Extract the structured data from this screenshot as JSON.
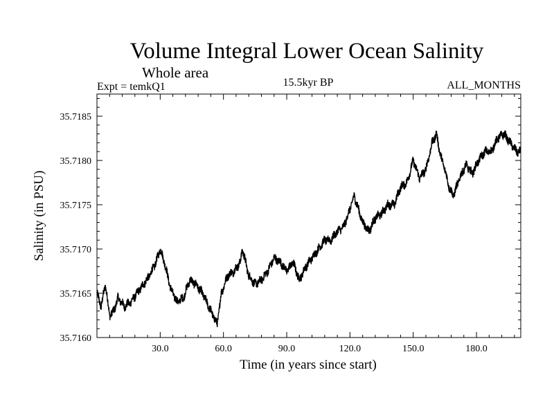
{
  "chart_data": {
    "type": "line",
    "title": "Volume Integral Lower Ocean Salinity",
    "subtitle": "Whole area",
    "header_left": "Expt = temkQ1",
    "header_center": "15.5kyr BP",
    "header_right": "ALL_MONTHS",
    "xlabel": "Time (in years since start)",
    "ylabel": "Salinity (in PSU)",
    "xlim": [
      0,
      201
    ],
    "ylim": [
      35.716,
      35.71875
    ],
    "xticks": [
      {
        "value": 30,
        "label": "30.0"
      },
      {
        "value": 60,
        "label": "60.0"
      },
      {
        "value": 90,
        "label": "90.0"
      },
      {
        "value": 120,
        "label": "120.0"
      },
      {
        "value": 150,
        "label": "150.0"
      },
      {
        "value": 180,
        "label": "180.0"
      }
    ],
    "yticks": [
      {
        "value": 35.716,
        "label": "35.7160"
      },
      {
        "value": 35.7165,
        "label": "35.7165"
      },
      {
        "value": 35.717,
        "label": "35.7170"
      },
      {
        "value": 35.7175,
        "label": "35.7175"
      },
      {
        "value": 35.718,
        "label": "35.7180"
      },
      {
        "value": 35.7185,
        "label": "35.7185"
      }
    ],
    "grid": false,
    "noise_amplitude": 6e-05,
    "series": [
      {
        "name": "salinity",
        "color": "#000000",
        "x": [
          0,
          2,
          4,
          6,
          8,
          10,
          13,
          16,
          19,
          22,
          25,
          28,
          30,
          32,
          35,
          38,
          41,
          44,
          47,
          50,
          53,
          55,
          57,
          59,
          62,
          65,
          68,
          69,
          72,
          75,
          78,
          81,
          84,
          87,
          90,
          93,
          96,
          99,
          102,
          105,
          108,
          111,
          114,
          117,
          120,
          122,
          124,
          126,
          129,
          132,
          135,
          138,
          141,
          144,
          147,
          150,
          153,
          156,
          159,
          161,
          163,
          165,
          167,
          169,
          172,
          175,
          178,
          181,
          184,
          187,
          190,
          193,
          196,
          199,
          201
        ],
        "y": [
          35.7165,
          35.71635,
          35.7166,
          35.71625,
          35.7163,
          35.71645,
          35.71635,
          35.7164,
          35.7165,
          35.7166,
          35.7167,
          35.71685,
          35.717,
          35.71685,
          35.71655,
          35.7164,
          35.71645,
          35.71665,
          35.7166,
          35.7165,
          35.71635,
          35.71625,
          35.71615,
          35.7165,
          35.7167,
          35.71675,
          35.71685,
          35.717,
          35.7167,
          35.7166,
          35.71665,
          35.71675,
          35.7169,
          35.71685,
          35.71675,
          35.71685,
          35.71665,
          35.7168,
          35.7169,
          35.717,
          35.7171,
          35.7171,
          35.7172,
          35.71725,
          35.71745,
          35.7176,
          35.71745,
          35.7173,
          35.7172,
          35.71735,
          35.7174,
          35.7175,
          35.7175,
          35.7177,
          35.71775,
          35.718,
          35.7178,
          35.7179,
          35.7182,
          35.7183,
          35.71805,
          35.7179,
          35.7177,
          35.7176,
          35.7178,
          35.71795,
          35.71785,
          35.718,
          35.7181,
          35.7181,
          35.71825,
          35.7183,
          35.7182,
          35.7181,
          35.7181
        ]
      }
    ]
  }
}
